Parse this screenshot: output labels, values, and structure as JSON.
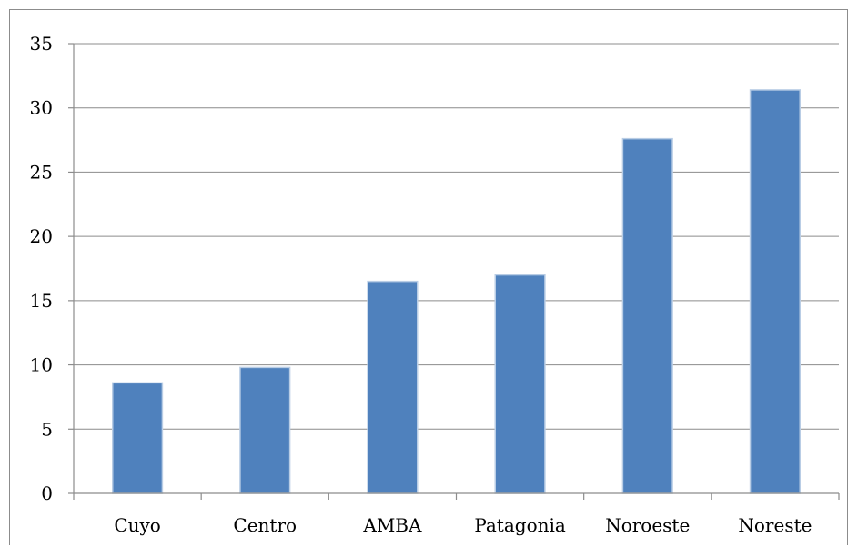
{
  "chart_data": {
    "type": "bar",
    "categories": [
      "Cuyo",
      "Centro",
      "AMBA",
      "Patagonia",
      "Noroeste",
      "Noreste"
    ],
    "values": [
      8.6,
      9.8,
      16.5,
      17.0,
      27.6,
      31.4
    ],
    "yticks": [
      "0",
      "5",
      "10",
      "15",
      "20",
      "25",
      "30",
      "35"
    ],
    "ylim": [
      0,
      35
    ],
    "grid": true,
    "legend": "none",
    "colors": {
      "bar": "#4f81bd",
      "bar_edge": "#b9cde5",
      "grid": "#8c8c8c",
      "text": "#000000"
    }
  }
}
